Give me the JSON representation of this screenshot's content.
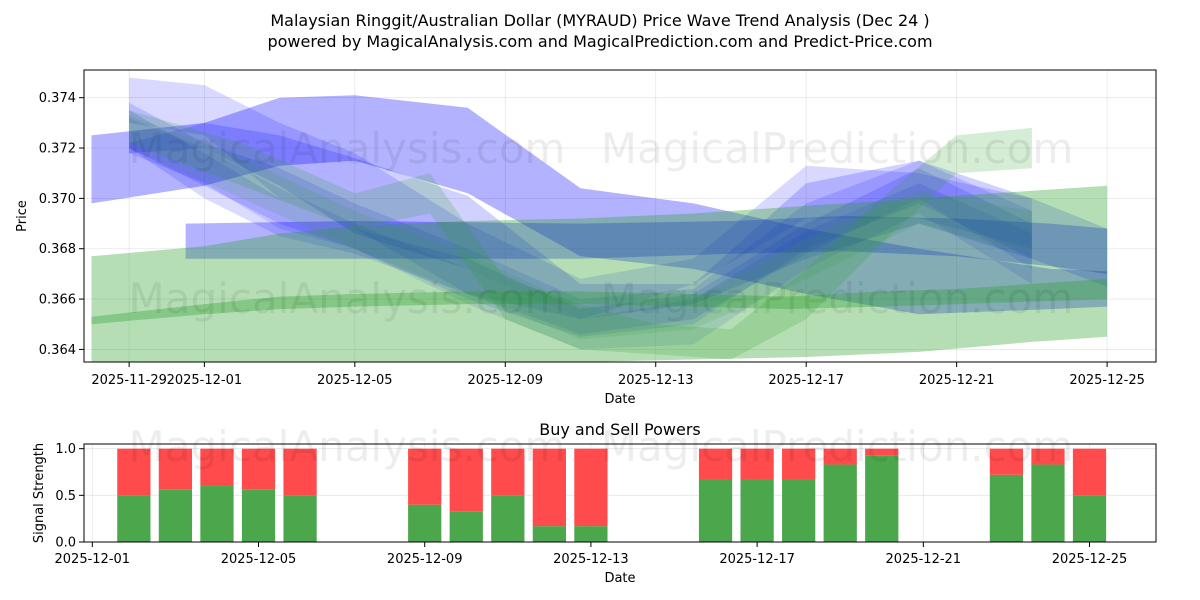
{
  "title_line1": "Malaysian Ringgit/Australian Dollar (MYRAUD) Price Wave Trend Analysis (Dec 24 )",
  "title_line2": "powered by MagicalAnalysis.com and MagicalPrediction.com and Predict-Price.com",
  "watermarks": [
    "MagicalAnalysis.com",
    "MagicalPrediction.com"
  ],
  "colors": {
    "blue": "#0000ff",
    "green": "#2ca02c",
    "buy": "#4ca64c",
    "sell": "#ff4b4b"
  },
  "chart_data": [
    {
      "type": "area",
      "title": "",
      "xlabel": "Date",
      "ylabel": "Price",
      "xlim_days": [
        -1.2,
        27.3
      ],
      "ylim": [
        0.3635,
        0.3751
      ],
      "x_tick_days": [
        0,
        2,
        6,
        10,
        14,
        18,
        22,
        26
      ],
      "x_tick_labels": [
        "2025-11-29",
        "2025-12-01",
        "2025-12-05",
        "2025-12-09",
        "2025-12-13",
        "2025-12-17",
        "2025-12-21",
        "2025-12-25"
      ],
      "y_ticks": [
        0.364,
        0.366,
        0.368,
        0.37,
        0.372,
        0.374
      ],
      "y_tick_labels": [
        "0.364",
        "0.366",
        "0.368",
        "0.370",
        "0.372",
        "0.374"
      ],
      "series": [
        {
          "name": "blue-wave-1",
          "color": "blue",
          "opacity": 0.3,
          "days": [
            -1,
            2,
            4,
            6,
            9,
            12,
            15,
            18,
            21,
            24.5,
            26
          ],
          "upper": [
            0.3725,
            0.373,
            0.374,
            0.3741,
            0.3736,
            0.3704,
            0.3698,
            0.3688,
            0.368,
            0.3672,
            0.3671
          ],
          "lower": [
            0.3698,
            0.3705,
            0.3713,
            0.3715,
            0.3702,
            0.3677,
            0.3672,
            0.3662,
            0.3654,
            0.3656,
            0.3657
          ]
        },
        {
          "name": "blue-wave-2",
          "color": "blue",
          "opacity": 0.18,
          "days": [
            0,
            2,
            4,
            6,
            9,
            12,
            15,
            18,
            21,
            24,
            26
          ],
          "upper": [
            0.3722,
            0.373,
            0.3725,
            0.3716,
            0.3701,
            0.3666,
            0.3666,
            0.3706,
            0.3715,
            0.37,
            0.3688
          ],
          "lower": [
            0.3718,
            0.372,
            0.3705,
            0.3686,
            0.3672,
            0.3652,
            0.3658,
            0.3676,
            0.369,
            0.3676,
            0.3665
          ]
        },
        {
          "name": "blue-wave-3",
          "color": "blue",
          "opacity": 0.15,
          "days": [
            0,
            2,
            4,
            6,
            9,
            12,
            15,
            18,
            21,
            24
          ],
          "upper": [
            0.3748,
            0.3745,
            0.373,
            0.3718,
            0.369,
            0.3668,
            0.3676,
            0.3713,
            0.371,
            0.37
          ],
          "lower": [
            0.373,
            0.3725,
            0.37,
            0.3688,
            0.3662,
            0.3652,
            0.3666,
            0.3692,
            0.3692,
            0.368
          ]
        },
        {
          "name": "blue-wave-4",
          "color": "blue",
          "opacity": 0.14,
          "days": [
            0,
            2,
            4,
            6,
            9,
            12,
            15,
            18,
            21,
            24
          ],
          "upper": [
            0.3738,
            0.3722,
            0.3712,
            0.3698,
            0.368,
            0.366,
            0.3664,
            0.3698,
            0.3715,
            0.3695
          ],
          "lower": [
            0.372,
            0.3705,
            0.369,
            0.368,
            0.366,
            0.3645,
            0.365,
            0.368,
            0.3698,
            0.3676
          ]
        },
        {
          "name": "blue-wave-5",
          "color": "blue",
          "opacity": 0.14,
          "days": [
            0,
            2,
            4,
            6,
            9,
            12,
            15,
            18,
            21,
            24
          ],
          "upper": [
            0.3735,
            0.3718,
            0.37,
            0.3688,
            0.3676,
            0.3656,
            0.3662,
            0.369,
            0.3712,
            0.369
          ],
          "lower": [
            0.372,
            0.37,
            0.3685,
            0.3678,
            0.3662,
            0.3646,
            0.3652,
            0.3678,
            0.37,
            0.3672
          ]
        },
        {
          "name": "blue-wave-6",
          "color": "blue",
          "opacity": 0.12,
          "days": [
            0,
            2,
            4,
            6,
            9,
            12,
            15,
            18,
            21,
            24
          ],
          "upper": [
            0.3732,
            0.372,
            0.3704,
            0.369,
            0.3672,
            0.3652,
            0.366,
            0.3687,
            0.3706,
            0.3686
          ],
          "lower": [
            0.3718,
            0.3706,
            0.3688,
            0.368,
            0.3658,
            0.364,
            0.3642,
            0.3672,
            0.3694,
            0.3666
          ]
        },
        {
          "name": "blue-wave-7",
          "color": "blue",
          "opacity": 0.3,
          "days": [
            1.5,
            6,
            12,
            16,
            19,
            22,
            24.5,
            26
          ],
          "upper": [
            0.369,
            0.3691,
            0.369,
            0.3691,
            0.3693,
            0.3692,
            0.369,
            0.3688
          ],
          "lower": [
            0.3676,
            0.3676,
            0.3676,
            0.3678,
            0.3679,
            0.3677,
            0.3673,
            0.367
          ]
        },
        {
          "name": "green-wave-1",
          "color": "green",
          "opacity": 0.35,
          "days": [
            -1,
            2,
            4,
            6,
            9,
            12,
            15,
            18,
            21,
            24,
            26
          ],
          "upper": [
            0.3677,
            0.3681,
            0.3686,
            0.3689,
            0.3691,
            0.3692,
            0.3694,
            0.3697,
            0.37,
            0.3703,
            0.3705
          ],
          "lower": [
            0.3635,
            0.3635,
            0.3635,
            0.3635,
            0.3635,
            0.3635,
            0.3636,
            0.3637,
            0.3639,
            0.3643,
            0.3645
          ]
        },
        {
          "name": "green-wave-2",
          "color": "green",
          "opacity": 0.35,
          "days": [
            -1,
            2,
            4,
            6,
            9,
            12,
            15,
            17.5,
            20,
            22,
            24,
            26
          ],
          "upper": [
            0.3653,
            0.3658,
            0.3661,
            0.3662,
            0.3663,
            0.3663,
            0.3662,
            0.3661,
            0.3663,
            0.3664,
            0.3666,
            0.3668
          ],
          "lower": [
            0.365,
            0.3654,
            0.3656,
            0.3657,
            0.3658,
            0.3658,
            0.3657,
            0.3656,
            0.3657,
            0.3658,
            0.3659,
            0.366
          ]
        },
        {
          "name": "green-wave-3",
          "color": "green",
          "opacity": 0.2,
          "days": [
            0,
            3,
            6,
            8,
            10,
            12,
            14,
            16,
            18,
            20,
            22,
            24
          ],
          "upper": [
            0.3735,
            0.3722,
            0.3702,
            0.371,
            0.3668,
            0.3658,
            0.365,
            0.3648,
            0.3672,
            0.37,
            0.3725,
            0.3728
          ],
          "lower": [
            0.3722,
            0.3705,
            0.3688,
            0.3694,
            0.3652,
            0.364,
            0.3638,
            0.3636,
            0.3652,
            0.3682,
            0.371,
            0.3712
          ]
        },
        {
          "name": "green-wave-4",
          "color": "green",
          "opacity": 0.15,
          "days": [
            0,
            3,
            6,
            9,
            12,
            15,
            18,
            21,
            24
          ],
          "upper": [
            0.3733,
            0.3716,
            0.3695,
            0.3678,
            0.3657,
            0.366,
            0.3684,
            0.3703,
            0.3695
          ],
          "lower": [
            0.372,
            0.37,
            0.368,
            0.3662,
            0.3644,
            0.3648,
            0.3668,
            0.369,
            0.3678
          ]
        }
      ]
    },
    {
      "type": "bar",
      "title": "Buy and Sell Powers",
      "xlabel": "Date",
      "ylabel": "Signal Strength",
      "xlim_days": [
        -0.2,
        25.6
      ],
      "ylim": [
        0,
        1.05
      ],
      "x_tick_days": [
        0,
        4,
        8,
        12,
        16,
        20,
        24
      ],
      "x_tick_labels": [
        "2025-12-01",
        "2025-12-05",
        "2025-12-09",
        "2025-12-13",
        "2025-12-17",
        "2025-12-21",
        "2025-12-25"
      ],
      "y_ticks": [
        0,
        0.5,
        1.0
      ],
      "y_tick_labels": [
        "0.0",
        "0.5",
        "1.0"
      ],
      "bar_days": [
        1,
        2,
        3,
        4,
        5,
        8,
        9,
        10,
        11,
        12,
        15,
        16,
        17,
        18,
        19,
        22,
        23,
        24
      ],
      "buy": [
        0.5,
        0.56,
        0.61,
        0.56,
        0.5,
        0.4,
        0.33,
        0.5,
        0.17,
        0.17,
        0.67,
        0.67,
        0.67,
        0.83,
        0.93,
        0.72,
        0.83,
        0.5
      ],
      "sell": [
        0.5,
        0.44,
        0.39,
        0.44,
        0.5,
        0.6,
        0.67,
        0.5,
        0.83,
        0.83,
        0.33,
        0.33,
        0.33,
        0.17,
        0.07,
        0.28,
        0.17,
        0.5
      ]
    }
  ]
}
